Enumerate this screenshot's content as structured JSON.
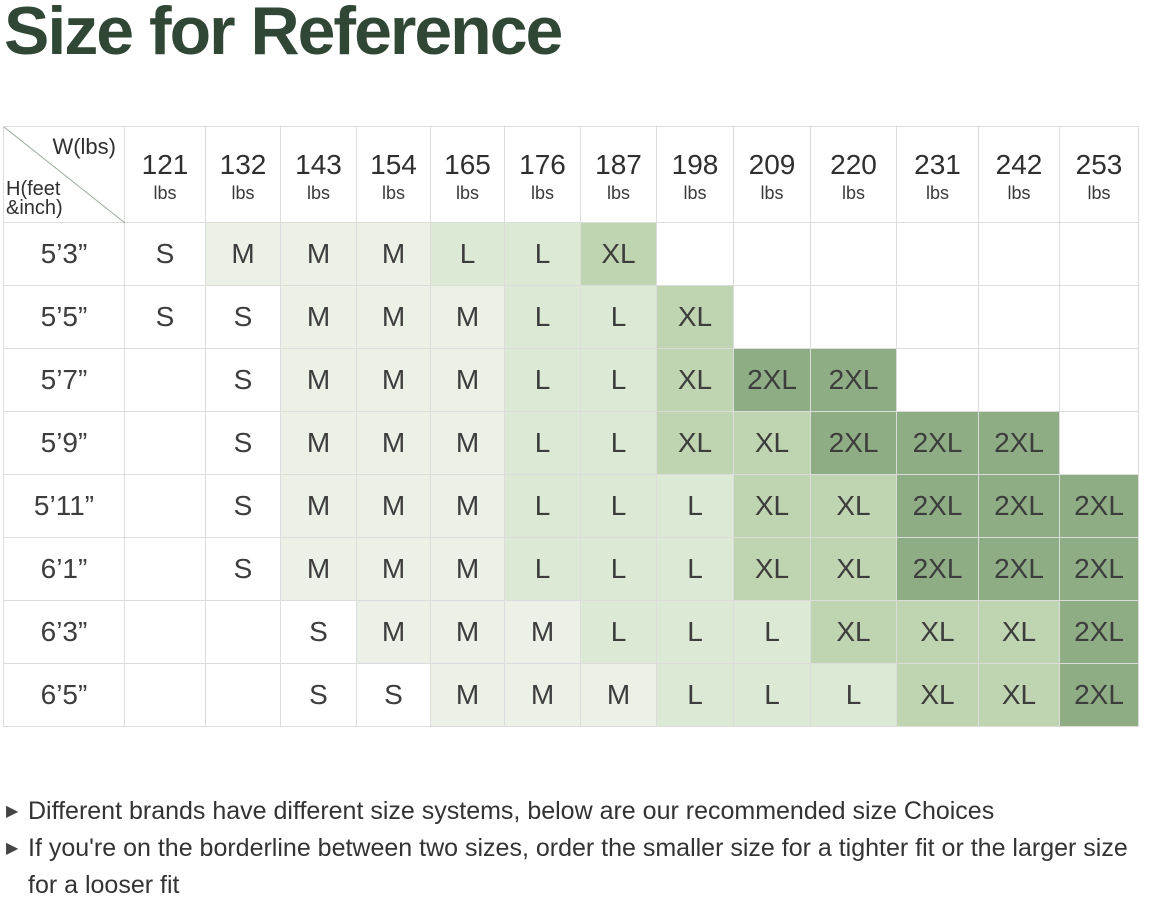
{
  "title": "Size for Reference",
  "corner": {
    "weight_label": "W(lbs)",
    "height_label_line1": "H(feet",
    "height_label_line2": "&inch)"
  },
  "weights": [
    {
      "num": "121",
      "unit": "lbs"
    },
    {
      "num": "132",
      "unit": "lbs"
    },
    {
      "num": "143",
      "unit": "lbs"
    },
    {
      "num": "154",
      "unit": "lbs"
    },
    {
      "num": "165",
      "unit": "lbs"
    },
    {
      "num": "176",
      "unit": "lbs"
    },
    {
      "num": "187",
      "unit": "lbs"
    },
    {
      "num": "198",
      "unit": "lbs"
    },
    {
      "num": "209",
      "unit": "lbs"
    },
    {
      "num": "220",
      "unit": "lbs"
    },
    {
      "num": "231",
      "unit": "lbs"
    },
    {
      "num": "242",
      "unit": "lbs"
    },
    {
      "num": "253",
      "unit": "lbs"
    }
  ],
  "size_colors": {
    "S": "#ffffff",
    "M": "#ebf1e7",
    "L": "#dce9d4",
    "XL": "#bfd4b0",
    "2XL": "#8fad85"
  },
  "rows": [
    {
      "height": "5’3”",
      "cells": [
        "S",
        "M",
        "M",
        "M",
        "L",
        "L",
        "XL",
        "",
        "",
        "",
        "",
        "",
        ""
      ]
    },
    {
      "height": "5’5”",
      "cells": [
        "S",
        "S",
        "M",
        "M",
        "M",
        "L",
        "L",
        "XL",
        "",
        "",
        "",
        "",
        ""
      ]
    },
    {
      "height": "5’7”",
      "cells": [
        "",
        "S",
        "M",
        "M",
        "M",
        "L",
        "L",
        "XL",
        "2XL",
        "2XL",
        "",
        "",
        ""
      ]
    },
    {
      "height": "5’9”",
      "cells": [
        "",
        "S",
        "M",
        "M",
        "M",
        "L",
        "L",
        "XL",
        "XL",
        "2XL",
        "2XL",
        "2XL",
        ""
      ]
    },
    {
      "height": "5’11”",
      "cells": [
        "",
        "S",
        "M",
        "M",
        "M",
        "L",
        "L",
        "L",
        "XL",
        "XL",
        "2XL",
        "2XL",
        "2XL"
      ]
    },
    {
      "height": "6’1”",
      "cells": [
        "",
        "S",
        "M",
        "M",
        "M",
        "L",
        "L",
        "L",
        "XL",
        "XL",
        "2XL",
        "2XL",
        "2XL"
      ]
    },
    {
      "height": "6’3”",
      "cells": [
        "",
        "",
        "S",
        "M",
        "M",
        "M",
        "L",
        "L",
        "L",
        "XL",
        "XL",
        "XL",
        "2XL"
      ]
    },
    {
      "height": "6’5”",
      "cells": [
        "",
        "",
        "S",
        "S",
        "M",
        "M",
        "M",
        "L",
        "L",
        "L",
        "XL",
        "XL",
        "2XL"
      ]
    }
  ],
  "notes": [
    "Different brands have different size systems, below are our recommended size Choices",
    "If you're on the borderline between two sizes, order the smaller size for a tighter fit or the larger size for a looser fit"
  ]
}
